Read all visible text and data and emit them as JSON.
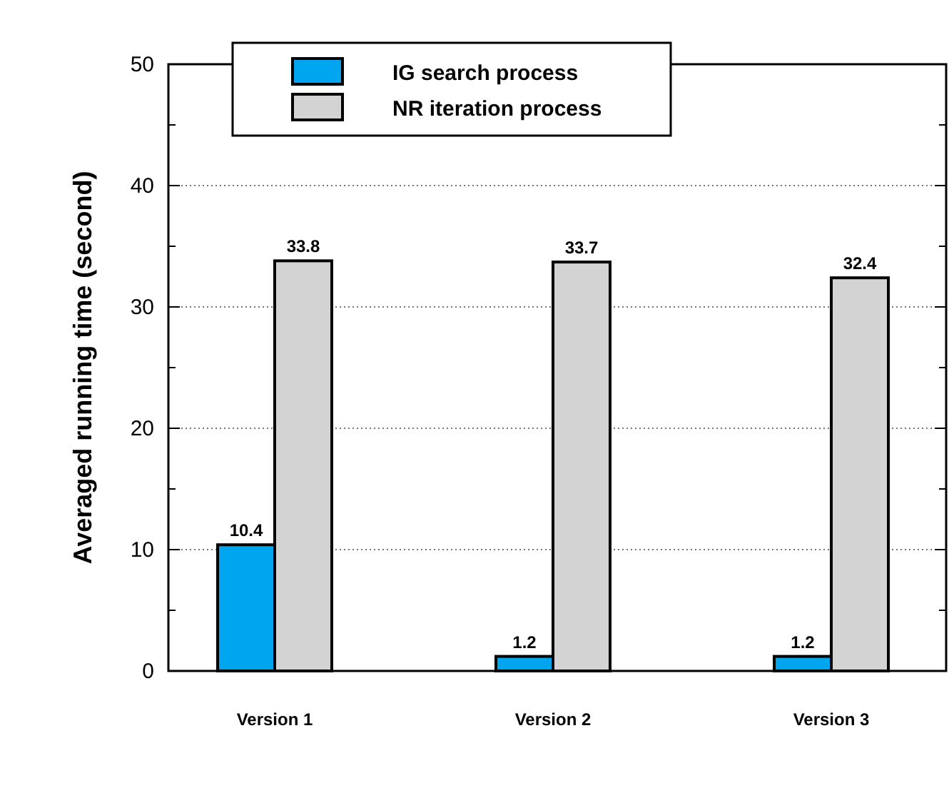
{
  "chart_data": {
    "type": "bar",
    "ylabel": "Averaged running time (second)",
    "categories": [
      "Version 1",
      "Version 2",
      "Version 3"
    ],
    "series": [
      {
        "name": "IG search process",
        "color": "#00a5ef",
        "values": [
          10.4,
          1.2,
          1.2
        ]
      },
      {
        "name": "NR iteration process",
        "color": "#d3d3d3",
        "values": [
          33.8,
          33.7,
          32.4
        ]
      }
    ],
    "ylim": [
      0,
      50
    ],
    "yticks": [
      0,
      {
        "value": 5,
        "label": null
      },
      10,
      {
        "value": 15,
        "label": null
      },
      20,
      {
        "value": 25,
        "label": null
      },
      30,
      {
        "value": 35,
        "label": null
      },
      40,
      {
        "value": 45,
        "label": null
      },
      50
    ],
    "grid": "y",
    "legend": "top left",
    "data_labels": true
  }
}
